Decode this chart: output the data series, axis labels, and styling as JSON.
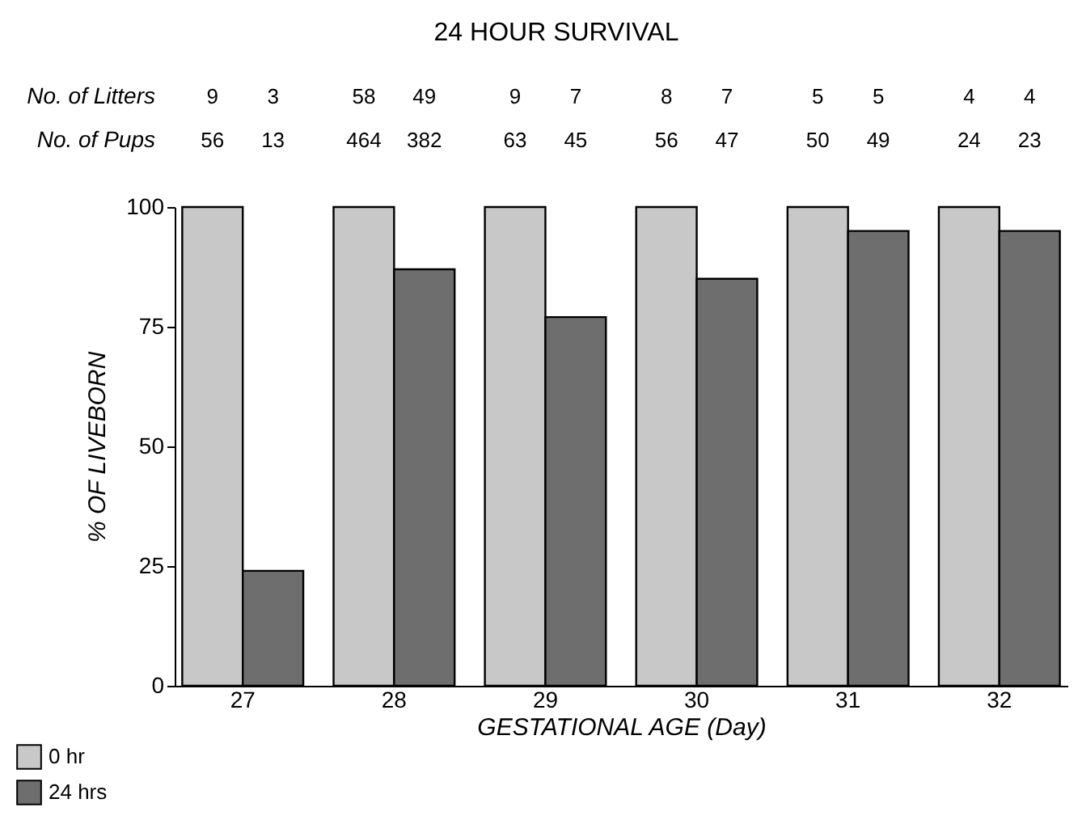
{
  "chart_data": {
    "type": "bar",
    "title": "24 HOUR SURVIVAL",
    "xlabel": "GESTATIONAL AGE (Day)",
    "ylabel": "% OF LIVEBORN",
    "categories": [
      "27",
      "28",
      "29",
      "30",
      "31",
      "32"
    ],
    "series": [
      {
        "name": "0 hr",
        "color": "#c8c8c8",
        "values": [
          100,
          100,
          100,
          100,
          100,
          100
        ]
      },
      {
        "name": "24 hrs",
        "color": "#6e6e6e",
        "values": [
          24,
          87,
          77,
          85,
          95,
          95
        ]
      }
    ],
    "ylim": [
      0,
      100
    ],
    "yticks": [
      0,
      25,
      50,
      75,
      100
    ],
    "grid": false,
    "legend": "bottom left",
    "annotations": [
      "No. of Litters",
      "9",
      "3",
      "58",
      "49",
      "9",
      "7",
      "8",
      "7",
      "5",
      "5",
      "4",
      "4",
      "No. of Pups",
      "56",
      "13",
      "464",
      "382",
      "63",
      "45",
      "56",
      "47",
      "50",
      "49",
      "24",
      "23"
    ]
  }
}
